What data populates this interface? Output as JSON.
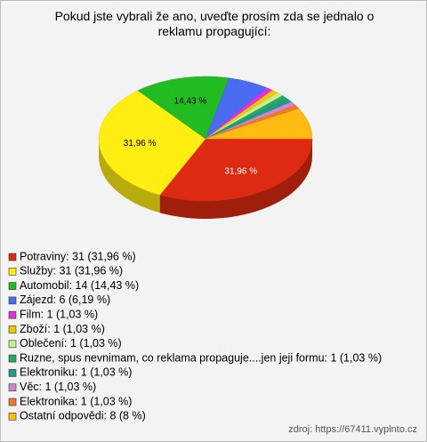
{
  "chart_data": {
    "type": "pie3d",
    "title": "Pokud jste vybrali že ano, uveďte prosím zda se jednalo o reklamu propagující:",
    "categories": [
      "Potraviny: 31 (31,96 %)",
      "Služby: 31 (31,96 %)",
      "Automobil: 14 (14,43 %)",
      "Zájezd: 6 (6,19 %)",
      "Film: 1 (1,03 %)",
      "Zboží: 1 (1,03 %)",
      "Oblečení: 1 (1,03 %)",
      "Ruzne, spus nevnimam, co reklama propaguje....jen jeji formu: 1 (1,03 %)",
      "Elektroniku: 1 (1,03 %)",
      "Věc: 1 (1,03 %)",
      "Elektronika: 1 (1,03 %)",
      "Ostatní odpovědi: 8 (8 %)"
    ],
    "values": [
      31.96,
      31.96,
      14.43,
      6.19,
      1.03,
      1.03,
      1.03,
      1.03,
      1.03,
      1.03,
      1.03,
      8
    ],
    "value_labels": [
      "31,96 %",
      "31,96 %",
      "14,43 %",
      null,
      null,
      null,
      null,
      null,
      null,
      null,
      null,
      null
    ],
    "colors": [
      "#dd2a10",
      "#ffee11",
      "#22bb22",
      "#4a6cf0",
      "#e030e0",
      "#f0c800",
      "#c8f090",
      "#22aa66",
      "#229988",
      "#cc88cc",
      "#f07828",
      "#ffbb11"
    ],
    "source": "zdroj: https://67411.vyplnto.cz"
  }
}
